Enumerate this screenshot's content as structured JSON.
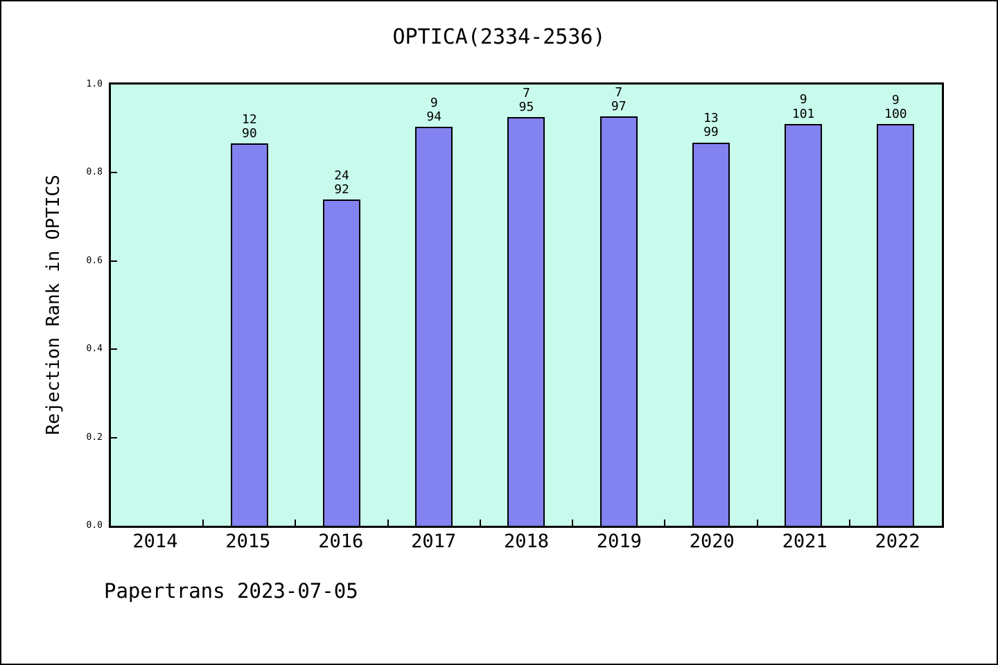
{
  "header": {
    "title": "OPTICA(2334-2536)"
  },
  "footer": {
    "text": "Papertrans 2023-07-05"
  },
  "chart_data": {
    "type": "bar",
    "title": "OPTICA(2334-2536)",
    "xlabel": "",
    "ylabel": "Rejection Rank in OPTICS",
    "ylim": [
      0.0,
      1.0
    ],
    "yticks": [
      "0.0",
      "0.2",
      "0.4",
      "0.6",
      "0.8",
      "1.0"
    ],
    "grid": false,
    "legend_position": "none",
    "plot_bg_color": "#c9fbec",
    "bar_color": "#8282f0",
    "bar_edge_color": "#000000",
    "categories": [
      "2014",
      "2015",
      "2016",
      "2017",
      "2018",
      "2019",
      "2020",
      "2021",
      "2022"
    ],
    "series": [
      {
        "name": "Rejection Rank in OPTICS",
        "values": [
          null,
          0.8667,
          0.7391,
          0.9043,
          0.9263,
          0.9278,
          0.8687,
          0.9109,
          0.91
        ]
      }
    ],
    "bar_annotations": [
      {
        "category": "2014",
        "rank": "",
        "total": ""
      },
      {
        "category": "2015",
        "rank": "12",
        "total": "90"
      },
      {
        "category": "2016",
        "rank": "24",
        "total": "92"
      },
      {
        "category": "2017",
        "rank": "9",
        "total": "94"
      },
      {
        "category": "2018",
        "rank": "7",
        "total": "95"
      },
      {
        "category": "2019",
        "rank": "7",
        "total": "97"
      },
      {
        "category": "2020",
        "rank": "13",
        "total": "99"
      },
      {
        "category": "2021",
        "rank": "9",
        "total": "101"
      },
      {
        "category": "2022",
        "rank": "9",
        "total": "100"
      }
    ]
  }
}
